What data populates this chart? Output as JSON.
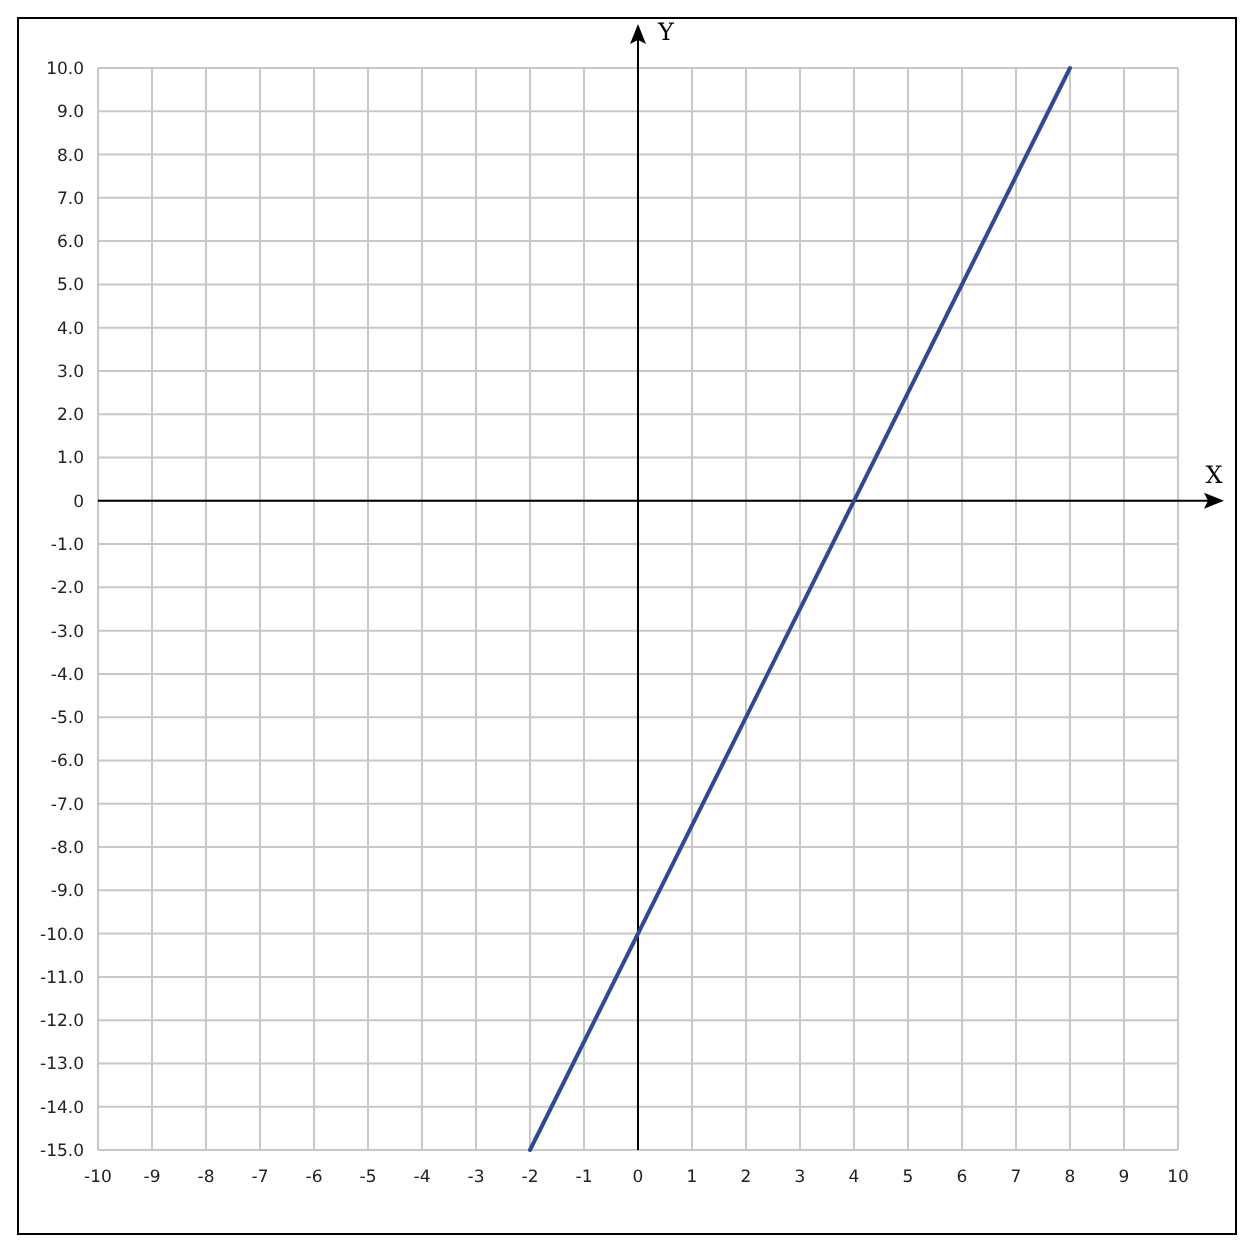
{
  "chart_data": {
    "type": "line",
    "xlabel": "X",
    "ylabel": "Y",
    "x": [
      -2,
      0,
      4,
      8
    ],
    "series": [
      {
        "color": "#2f4a94",
        "values": [
          -15,
          -10,
          0,
          10
        ]
      }
    ],
    "xlim": [
      -10,
      10
    ],
    "ylim": [
      -15,
      10
    ],
    "xticks": [
      -10,
      -9,
      -8,
      -7,
      -6,
      -5,
      -4,
      -3,
      -2,
      -1,
      0,
      1,
      2,
      3,
      4,
      5,
      6,
      7,
      8,
      9,
      10
    ],
    "yticks": [
      {
        "value": 10,
        "label": "10.0"
      },
      {
        "value": 9,
        "label": "9.0"
      },
      {
        "value": 8,
        "label": "8.0"
      },
      {
        "value": 7,
        "label": "7.0"
      },
      {
        "value": 6,
        "label": "6.0"
      },
      {
        "value": 5,
        "label": "5.0"
      },
      {
        "value": 4,
        "label": "4.0"
      },
      {
        "value": 3,
        "label": "3.0"
      },
      {
        "value": 2,
        "label": "2.0"
      },
      {
        "value": 1,
        "label": "1.0"
      },
      0,
      {
        "value": -1,
        "label": "-1.0"
      },
      {
        "value": -2,
        "label": "-2.0"
      },
      {
        "value": -3,
        "label": "-3.0"
      },
      {
        "value": -4,
        "label": "-4.0"
      },
      {
        "value": -5,
        "label": "-5.0"
      },
      {
        "value": -6,
        "label": "-6.0"
      },
      {
        "value": -7,
        "label": "-7.0"
      },
      {
        "value": -8,
        "label": "-8.0"
      },
      {
        "value": -9,
        "label": "-9.0"
      },
      {
        "value": -10,
        "label": "-10.0"
      },
      {
        "value": -11,
        "label": "-11.0"
      },
      {
        "value": -12,
        "label": "-12.0"
      },
      {
        "value": -13,
        "label": "-13.0"
      },
      {
        "value": -14,
        "label": "-14.0"
      },
      {
        "value": -15,
        "label": "-15.0"
      }
    ],
    "grid": true,
    "marker": "none",
    "line_style": "solid"
  }
}
